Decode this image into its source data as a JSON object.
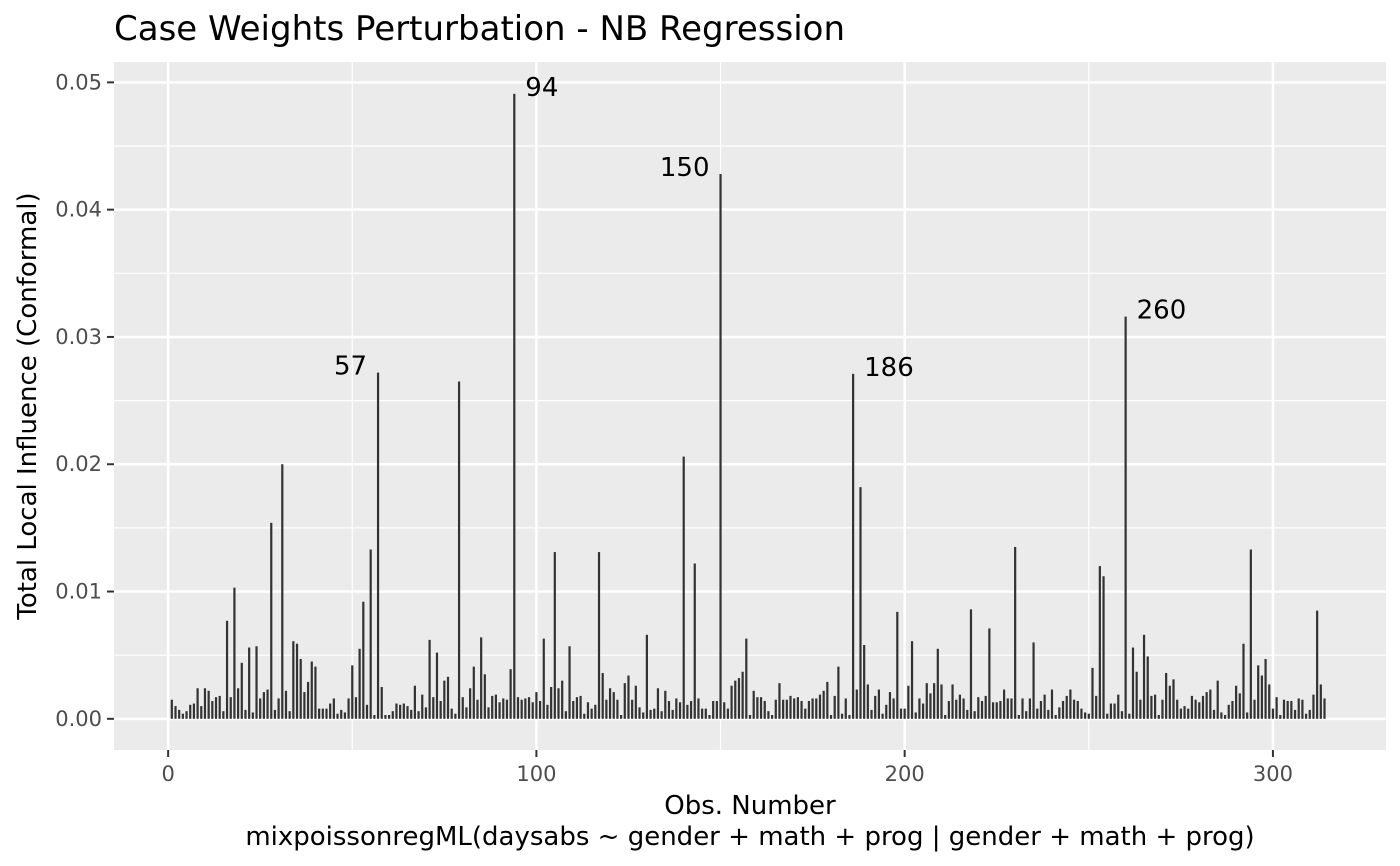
{
  "chart_data": {
    "type": "bar",
    "title": "Case Weights Perturbation - NB Regression",
    "xlabel": "Obs. Number",
    "caption": "mixpoissonregML(daysabs ~ gender + math + prog | gender + math + prog)",
    "ylabel": "Total Local Influence (Conformal)",
    "xlim": [
      -14.7,
      330.7
    ],
    "ylim": [
      -0.00245,
      0.0516
    ],
    "x_ticks": [
      0,
      100,
      200,
      300
    ],
    "x_tick_labels": [
      "0",
      "100",
      "200",
      "300"
    ],
    "y_ticks": [
      0,
      0.01,
      0.02,
      0.03,
      0.04,
      0.05
    ],
    "y_tick_labels": [
      "0.00",
      "0.01",
      "0.02",
      "0.03",
      "0.04",
      "0.05"
    ],
    "grid": true,
    "panel_background": "#ebebeb",
    "bar_color": "#333333",
    "x_start": 1,
    "values": [
      0.0015,
      0.001,
      0.0007,
      0.0004,
      0.0006,
      0.0011,
      0.0012,
      0.0024,
      0.001,
      0.0024,
      0.0022,
      0.0014,
      0.0017,
      0.0018,
      0.0006,
      0.0077,
      0.0017,
      0.0103,
      0.0024,
      0.0044,
      0.0007,
      0.0056,
      0.0005,
      0.0057,
      0.0016,
      0.0021,
      0.0023,
      0.0154,
      0.0007,
      0.0016,
      0.02,
      0.0022,
      0.0006,
      0.0061,
      0.0059,
      0.0047,
      0.0021,
      0.0029,
      0.0045,
      0.0041,
      0.0008,
      0.0008,
      0.0008,
      0.0012,
      0.0016,
      0.0004,
      0.0007,
      0.0005,
      0.0016,
      0.0042,
      0.0017,
      0.0055,
      0.0092,
      0.0011,
      0.0133,
      0.0003,
      0.0272,
      0.0025,
      0.0003,
      0.0003,
      0.0006,
      0.0012,
      0.0011,
      0.0012,
      0.001,
      0.0007,
      0.0026,
      0.0006,
      0.0019,
      0.0009,
      0.0062,
      0.0017,
      0.0052,
      0.0014,
      0.003,
      0.0033,
      0.0008,
      0.0004,
      0.0265,
      0.0017,
      0.0009,
      0.0024,
      0.0041,
      0.0015,
      0.0064,
      0.0035,
      0.0009,
      0.0018,
      0.0019,
      0.0013,
      0.0016,
      0.0015,
      0.0039,
      0.0491,
      0.0017,
      0.0015,
      0.0016,
      0.0017,
      0.0013,
      0.0021,
      0.0014,
      0.0063,
      0.0011,
      0.0025,
      0.0131,
      0.0024,
      0.003,
      0.0006,
      0.0057,
      0.0014,
      0.0017,
      0.0018,
      0.0004,
      0.0013,
      0.0008,
      0.0011,
      0.0131,
      0.0036,
      0.0015,
      0.0024,
      0.0021,
      0.0015,
      0.0003,
      0.0028,
      0.0034,
      0.0015,
      0.0026,
      0.0009,
      0.0005,
      0.0066,
      0.0007,
      0.0008,
      0.0024,
      0.0006,
      0.0022,
      0.0014,
      0.0007,
      0.0016,
      0.0013,
      0.0206,
      0.0011,
      0.0014,
      0.0122,
      0.0016,
      0.0008,
      0.0008,
      0.0003,
      0.0014,
      0.0014,
      0.0428,
      0.0013,
      0.0008,
      0.0026,
      0.003,
      0.0032,
      0.0037,
      0.0063,
      0.0003,
      0.0022,
      0.0017,
      0.0017,
      0.0014,
      0.0006,
      0.0003,
      0.0015,
      0.0028,
      0.0015,
      0.0015,
      0.0018,
      0.0016,
      0.0017,
      0.0014,
      0.0008,
      0.0014,
      0.0016,
      0.0016,
      0.0019,
      0.0022,
      0.0029,
      0.0003,
      0.0018,
      0.0041,
      0.0004,
      0.0016,
      0.0003,
      0.0271,
      0.0023,
      0.0182,
      0.0058,
      0.0027,
      0.0007,
      0.0018,
      0.0023,
      0.0004,
      0.0011,
      0.0021,
      0.0016,
      0.0084,
      0.0008,
      0.0008,
      0.0026,
      0.0061,
      0.0005,
      0.0016,
      0.0012,
      0.0028,
      0.002,
      0.0028,
      0.0055,
      0.0027,
      0.0003,
      0.0014,
      0.0027,
      0.0015,
      0.0019,
      0.0016,
      0.0007,
      0.0086,
      0.0006,
      0.0017,
      0.0014,
      0.0018,
      0.0071,
      0.0013,
      0.0013,
      0.0014,
      0.0023,
      0.0016,
      0.0016,
      0.0135,
      0.0003,
      0.0016,
      0.0006,
      0.0016,
      0.006,
      0.0008,
      0.0014,
      0.0019,
      0.0007,
      0.0023,
      0.0003,
      0.0009,
      0.0014,
      0.0018,
      0.0023,
      0.0015,
      0.0014,
      0.0008,
      0.0005,
      0.0004,
      0.004,
      0.0018,
      0.012,
      0.0112,
      0.0004,
      0.0012,
      0.0012,
      0.0019,
      0.0006,
      0.0316,
      0.0004,
      0.0056,
      0.0037,
      0.0015,
      0.0066,
      0.0049,
      0.0018,
      0.0019,
      0.0003,
      0.0015,
      0.0036,
      0.0026,
      0.0031,
      0.0015,
      0.0008,
      0.001,
      0.0008,
      0.0018,
      0.0015,
      0.0013,
      0.0018,
      0.0021,
      0.0023,
      0.0007,
      0.003,
      0.0005,
      0.0003,
      0.0011,
      0.0014,
      0.0026,
      0.002,
      0.0059,
      0.0005,
      0.0133,
      0.0015,
      0.0042,
      0.0034,
      0.0047,
      0.0027,
      0.0008,
      0.0017,
      0.0003,
      0.0015,
      0.0014,
      0.0014,
      0.0007,
      0.0016,
      0.0015,
      0.0004,
      0.0007,
      0.0019,
      0.0085,
      0.0027,
      0.0016
    ],
    "annotations": [
      {
        "label": "57",
        "x": 57,
        "y": 0.0272,
        "side": "left"
      },
      {
        "label": "94",
        "x": 94,
        "y": 0.0491,
        "side": "right"
      },
      {
        "label": "150",
        "x": 150,
        "y": 0.0428,
        "side": "left"
      },
      {
        "label": "186",
        "x": 186,
        "y": 0.0271,
        "side": "right"
      },
      {
        "label": "260",
        "x": 260,
        "y": 0.0316,
        "side": "right"
      }
    ]
  }
}
